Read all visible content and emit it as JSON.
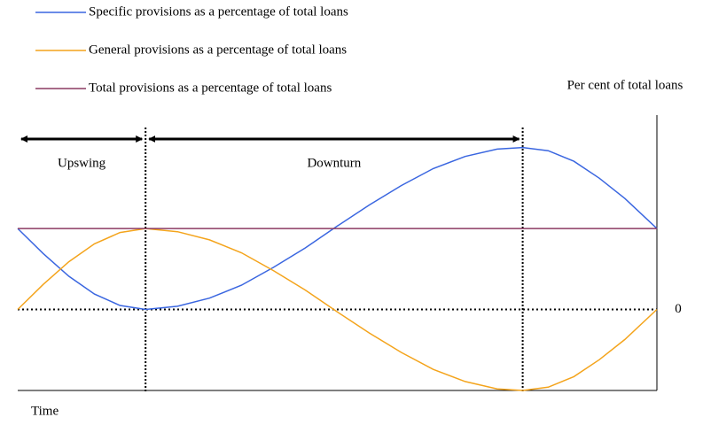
{
  "chart_data": {
    "type": "line",
    "y_label": "Per cent of total loans",
    "x_label": "Time",
    "x": [
      0,
      4,
      8,
      12,
      16,
      20,
      25,
      30,
      35,
      40,
      45,
      50,
      55,
      60,
      65,
      70,
      75,
      79,
      83,
      87,
      91,
      95,
      100
    ],
    "xlim": [
      0,
      100
    ],
    "ylim": [
      -1,
      2.4
    ],
    "yticks": [
      0
    ],
    "legend": "top-left",
    "series": [
      {
        "name": "Specific provisions as a percentage of total loans",
        "color": "#3a66e0",
        "values": [
          1,
          0.69,
          0.41,
          0.19,
          0.05,
          0,
          0.04,
          0.14,
          0.3,
          0.52,
          0.76,
          1.03,
          1.29,
          1.53,
          1.74,
          1.89,
          1.98,
          2,
          1.96,
          1.83,
          1.62,
          1.37,
          1
        ]
      },
      {
        "name": "General provisions as a percentage of total loans",
        "color": "#f4a41c",
        "values": [
          0,
          0.31,
          0.59,
          0.81,
          0.95,
          1,
          0.96,
          0.86,
          0.7,
          0.48,
          0.24,
          -0.03,
          -0.29,
          -0.53,
          -0.74,
          -0.89,
          -0.98,
          -1,
          -0.96,
          -0.83,
          -0.62,
          -0.37,
          0
        ]
      },
      {
        "name": "Total provisions as a percentage of total loans",
        "color": "#8b3a62",
        "values": [
          1,
          1,
          1,
          1,
          1,
          1,
          1,
          1,
          1,
          1,
          1,
          1,
          1,
          1,
          1,
          1,
          1,
          1,
          1,
          1,
          1,
          1,
          1
        ]
      }
    ],
    "phases": [
      {
        "label": "Upswing",
        "x": [
          0,
          20
        ]
      },
      {
        "label": "Downturn",
        "x": [
          20,
          79
        ]
      }
    ]
  }
}
